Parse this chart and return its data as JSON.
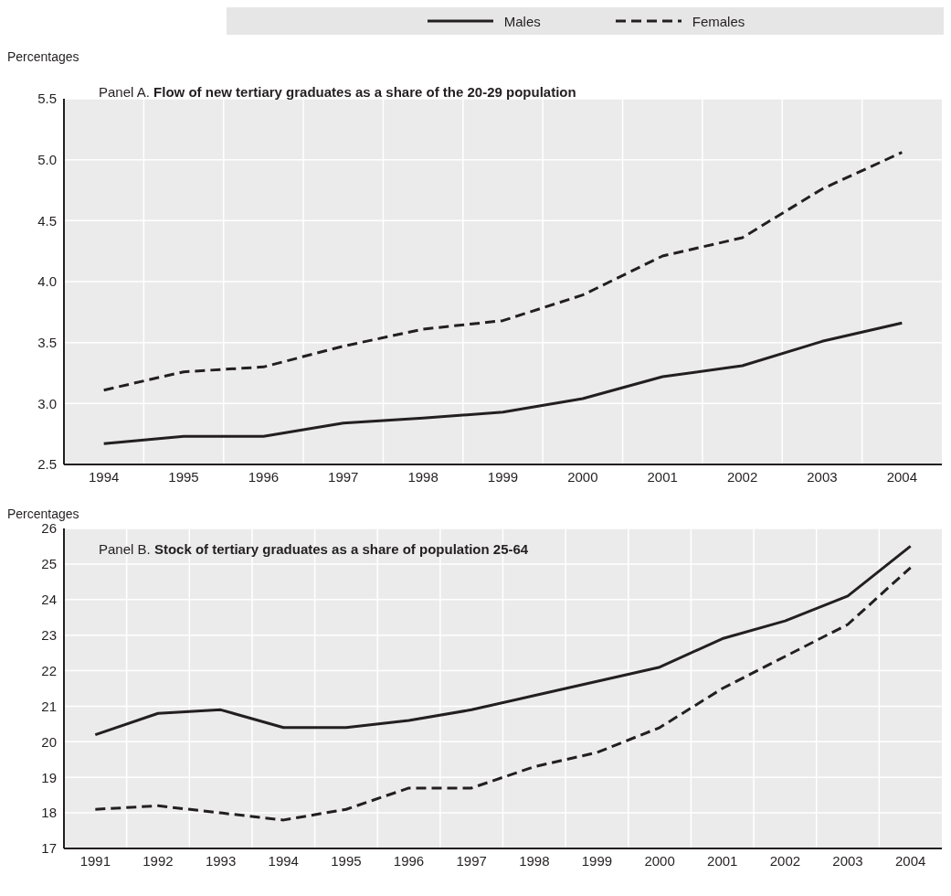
{
  "chart_data": [
    {
      "type": "line",
      "title": "Panel A. Flow of new tertiary graduates as a share of the 20-29 population",
      "ylabel": "Percentages",
      "categories": [
        "1994",
        "1995",
        "1996",
        "1997",
        "1998",
        "1999",
        "2000",
        "2001",
        "2002",
        "2003",
        "2004"
      ],
      "series": [
        {
          "name": "Males",
          "color": "#231f20",
          "line_style": "solid",
          "values": [
            2.67,
            2.73,
            2.73,
            2.84,
            2.88,
            2.93,
            3.04,
            3.22,
            3.31,
            3.51,
            3.66
          ]
        },
        {
          "name": "Females",
          "color": "#231f20",
          "line_style": "dashed",
          "values": [
            3.11,
            3.26,
            3.3,
            3.47,
            3.61,
            3.68,
            3.89,
            4.21,
            4.36,
            4.76,
            5.06
          ]
        }
      ],
      "ylim": [
        2.5,
        5.5
      ],
      "yticks": [
        2.5,
        {
          "value": 3,
          "label": "3.0"
        },
        3.5,
        {
          "value": 4,
          "label": "4.0"
        },
        4.5,
        {
          "value": 5,
          "label": "5.0"
        },
        5.5
      ],
      "grid": true,
      "legend": "top",
      "marker": "none"
    },
    {
      "type": "line",
      "title": "Panel B. Stock of tertiary graduates as a share of population 25-64",
      "ylabel": "Percentages",
      "categories": [
        "1991",
        "1992",
        "1993",
        "1994",
        "1995",
        "1996",
        "1997",
        "1998",
        "1999",
        "2000",
        "2001",
        "2002",
        "2003",
        "2004"
      ],
      "series": [
        {
          "color": "#231f20",
          "line_style": "solid",
          "values": [
            20.2,
            20.8,
            20.9,
            20.4,
            20.4,
            20.6,
            20.9,
            21.3,
            21.7,
            22.1,
            22.9,
            23.4,
            24.1,
            25.5
          ]
        },
        {
          "color": "#231f20",
          "line_style": "dashed",
          "values": [
            18.1,
            18.2,
            18.0,
            17.8,
            18.1,
            18.7,
            18.7,
            19.3,
            19.7,
            20.4,
            21.5,
            22.4,
            23.3,
            24.9
          ]
        }
      ],
      "ylim": [
        17,
        26
      ],
      "yticks": [
        17,
        18,
        19,
        20,
        21,
        22,
        23,
        24,
        25,
        26
      ],
      "grid": true,
      "marker": "none"
    }
  ]
}
